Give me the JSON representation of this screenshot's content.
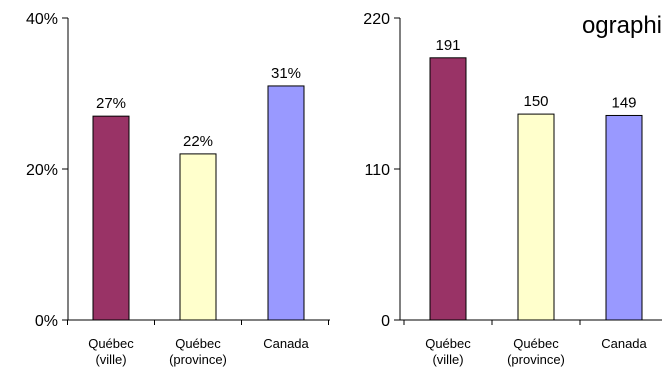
{
  "title_fragment": "ographi",
  "chart_data": [
    {
      "type": "bar",
      "categories": [
        [
          "Québec",
          "(ville)"
        ],
        [
          "Québec",
          "(province)"
        ],
        [
          "Canada"
        ]
      ],
      "values": [
        27,
        22,
        31
      ],
      "data_labels": [
        "27%",
        "22%",
        "31%"
      ],
      "yticks": [
        0,
        20,
        40
      ],
      "ytick_labels": [
        "0%",
        "20%",
        "40%"
      ],
      "ylim": [
        0,
        40
      ],
      "colors": [
        "#993366",
        "#ffffcc",
        "#9999ff"
      ],
      "grid": false
    },
    {
      "type": "bar",
      "categories": [
        [
          "Québec",
          "(ville)"
        ],
        [
          "Québec",
          "(province)"
        ],
        [
          "Canada"
        ]
      ],
      "values": [
        191,
        150,
        149
      ],
      "data_labels": [
        "191",
        "150",
        "149"
      ],
      "yticks": [
        0,
        110,
        220
      ],
      "ytick_labels": [
        "0",
        "110",
        "220"
      ],
      "ylim": [
        0,
        220
      ],
      "colors": [
        "#993366",
        "#ffffcc",
        "#9999ff"
      ],
      "grid": false
    }
  ]
}
